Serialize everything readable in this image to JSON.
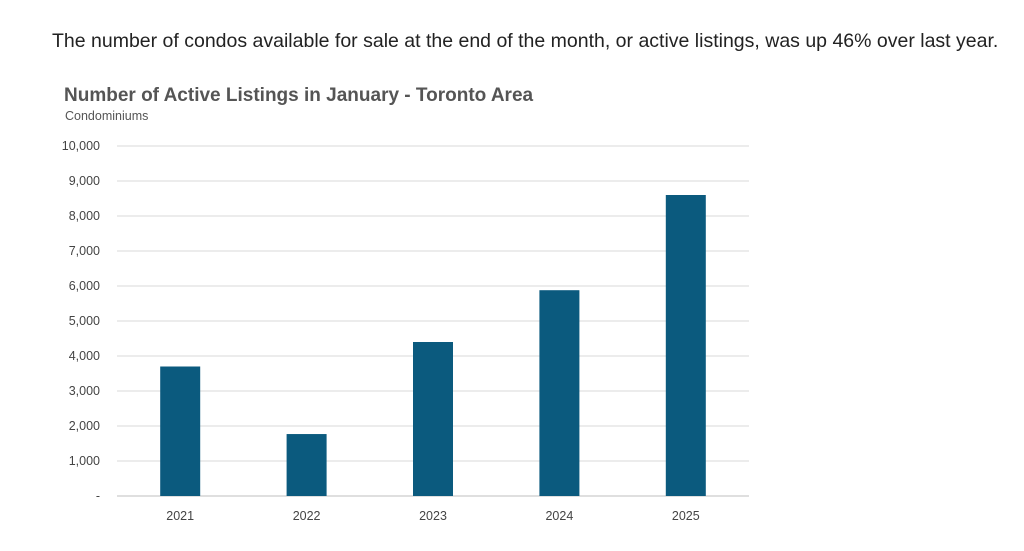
{
  "intro_text": "The number of condos available for sale at the end of the month, or active listings, was up 46% over last year.",
  "chart_data": {
    "type": "bar",
    "title": "Number of Active Listings in January - Toronto Area",
    "subtitle": "Condominiums",
    "categories": [
      "2021",
      "2022",
      "2023",
      "2024",
      "2025"
    ],
    "values": [
      3700,
      1770,
      4400,
      5880,
      8600
    ],
    "ylim": [
      0,
      10000
    ],
    "yticks": [
      0,
      1000,
      2000,
      3000,
      4000,
      5000,
      6000,
      7000,
      8000,
      9000,
      10000
    ],
    "ytick_labels": [
      "-",
      "1,000",
      "2,000",
      "3,000",
      "4,000",
      "5,000",
      "6,000",
      "7,000",
      "8,000",
      "9,000",
      "10,000"
    ],
    "grid": true,
    "bar_color": "#0b5a7e",
    "grid_color": "#d9d9d9"
  }
}
